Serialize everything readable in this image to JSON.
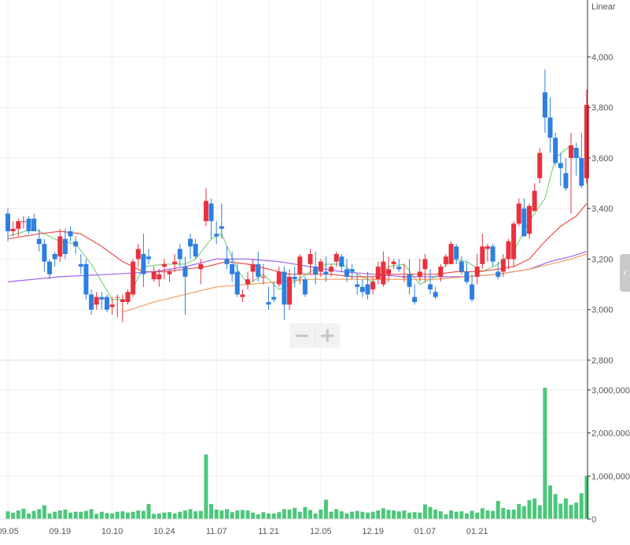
{
  "chart_data": {
    "type": "candlestick",
    "scale_label": "Linear",
    "price_axis": {
      "ticks": [
        "2,800",
        "3,000",
        "3,200",
        "3,400",
        "3,600",
        "3,800",
        "4,000"
      ],
      "ylim": [
        2800,
        4200
      ]
    },
    "volume_axis": {
      "ticks": [
        "0",
        "1,000,000",
        "2,000,000",
        "3,000,000"
      ],
      "ylim": [
        0,
        3600000
      ]
    },
    "x_tick_labels": [
      "09.05",
      "09.19",
      "10.10",
      "10.24",
      "11.07",
      "11.21",
      "12.05",
      "12.19",
      "01.07",
      "01.21"
    ],
    "x_tick_index": [
      0,
      10,
      20,
      30,
      40,
      50,
      60,
      70,
      80,
      90
    ],
    "grid": true,
    "colors": {
      "up": "#e8313e",
      "down": "#2d7fe0",
      "volume": "#4cc77b",
      "ma5": "#7fd47f",
      "ma20": "#e8504a",
      "ma60": "#a066e8",
      "ma120": "#f0a060"
    },
    "candles": [
      [
        3380,
        3400,
        3270,
        3310
      ],
      [
        3310,
        3350,
        3290,
        3320
      ],
      [
        3320,
        3360,
        3290,
        3350
      ],
      [
        3350,
        3370,
        3320,
        3350
      ],
      [
        3360,
        3370,
        3300,
        3310
      ],
      [
        3360,
        3380,
        3320,
        3310
      ],
      [
        3280,
        3320,
        3230,
        3260
      ],
      [
        3260,
        3280,
        3150,
        3190
      ],
      [
        3190,
        3200,
        3120,
        3140
      ],
      [
        3220,
        3230,
        3170,
        3200
      ],
      [
        3210,
        3320,
        3190,
        3290
      ],
      [
        3280,
        3320,
        3200,
        3220
      ],
      [
        3310,
        3330,
        3270,
        3290
      ],
      [
        3270,
        3290,
        3220,
        3250
      ],
      [
        3180,
        3220,
        3140,
        3170
      ],
      [
        3180,
        3200,
        3040,
        3060
      ],
      [
        3060,
        3080,
        2980,
        3000
      ],
      [
        3020,
        3070,
        3000,
        3050
      ],
      [
        3050,
        3070,
        3000,
        3040
      ],
      [
        3050,
        3060,
        2990,
        3000
      ],
      [
        3010,
        3050,
        2980,
        3020
      ],
      [
        3050,
        3060,
        2970,
        3050
      ],
      [
        3030,
        3060,
        2950,
        3040
      ],
      [
        3030,
        3080,
        3020,
        3070
      ],
      [
        3060,
        3200,
        3050,
        3190
      ],
      [
        3200,
        3260,
        3170,
        3240
      ],
      [
        3220,
        3300,
        3090,
        3140
      ],
      [
        3210,
        3240,
        3180,
        3200
      ],
      [
        3120,
        3170,
        3110,
        3150
      ],
      [
        3120,
        3160,
        3090,
        3140
      ],
      [
        3170,
        3200,
        3120,
        3180
      ],
      [
        3140,
        3160,
        3110,
        3150
      ],
      [
        3180,
        3220,
        3150,
        3190
      ],
      [
        3240,
        3260,
        3170,
        3200
      ],
      [
        3170,
        3210,
        2980,
        3130
      ],
      [
        3280,
        3300,
        3200,
        3250
      ],
      [
        3260,
        3280,
        3200,
        3210
      ],
      [
        3160,
        3200,
        3100,
        3180
      ],
      [
        3350,
        3480,
        3330,
        3430
      ],
      [
        3420,
        3440,
        3280,
        3350
      ],
      [
        3300,
        3350,
        3260,
        3290
      ],
      [
        3330,
        3420,
        3280,
        3320
      ],
      [
        3200,
        3250,
        3160,
        3180
      ],
      [
        3180,
        3230,
        3110,
        3140
      ],
      [
        3150,
        3180,
        3050,
        3060
      ],
      [
        3050,
        3080,
        3030,
        3060
      ],
      [
        3100,
        3150,
        3080,
        3120
      ],
      [
        3150,
        3200,
        3110,
        3180
      ],
      [
        3180,
        3230,
        3110,
        3130
      ],
      [
        3130,
        3180,
        3100,
        3130
      ],
      [
        3030,
        3090,
        3000,
        3020
      ],
      [
        3050,
        3110,
        3030,
        3040
      ],
      [
        3100,
        3170,
        3090,
        3150
      ],
      [
        3150,
        3170,
        2960,
        3020
      ],
      [
        3020,
        3160,
        3000,
        3130
      ],
      [
        3130,
        3170,
        3090,
        3120
      ],
      [
        3140,
        3220,
        3100,
        3210
      ],
      [
        3120,
        3130,
        3050,
        3060
      ],
      [
        3180,
        3240,
        3140,
        3220
      ],
      [
        3170,
        3230,
        3100,
        3140
      ],
      [
        3150,
        3200,
        3130,
        3190
      ],
      [
        3150,
        3210,
        3110,
        3140
      ],
      [
        3150,
        3180,
        3130,
        3170
      ],
      [
        3190,
        3230,
        3170,
        3220
      ],
      [
        3210,
        3220,
        3150,
        3170
      ],
      [
        3160,
        3200,
        3110,
        3130
      ],
      [
        3160,
        3180,
        3120,
        3150
      ],
      [
        3100,
        3140,
        3060,
        3090
      ],
      [
        3090,
        3120,
        3050,
        3070
      ],
      [
        3100,
        3150,
        3040,
        3060
      ],
      [
        3080,
        3130,
        3060,
        3110
      ],
      [
        3120,
        3190,
        3100,
        3170
      ],
      [
        3100,
        3230,
        3090,
        3190
      ],
      [
        3140,
        3210,
        3110,
        3160
      ],
      [
        3180,
        3200,
        3160,
        3190
      ],
      [
        3170,
        3200,
        3150,
        3160
      ],
      [
        3130,
        3180,
        3110,
        3130
      ],
      [
        3140,
        3200,
        3060,
        3090
      ],
      [
        3050,
        3100,
        3020,
        3030
      ],
      [
        3130,
        3200,
        3110,
        3150
      ],
      [
        3160,
        3220,
        3110,
        3200
      ],
      [
        3100,
        3160,
        3060,
        3080
      ],
      [
        3070,
        3090,
        3040,
        3050
      ],
      [
        3130,
        3180,
        3110,
        3170
      ],
      [
        3180,
        3220,
        3170,
        3210
      ],
      [
        3180,
        3270,
        3190,
        3260
      ],
      [
        3250,
        3260,
        3180,
        3200
      ],
      [
        3190,
        3210,
        3140,
        3150
      ],
      [
        3150,
        3190,
        3100,
        3110
      ],
      [
        3100,
        3140,
        3030,
        3040
      ],
      [
        3130,
        3220,
        3100,
        3170
      ],
      [
        3180,
        3300,
        3160,
        3250
      ],
      [
        3240,
        3260,
        3190,
        3250
      ],
      [
        3250,
        3260,
        3170,
        3190
      ],
      [
        3150,
        3190,
        3120,
        3130
      ],
      [
        3150,
        3220,
        3130,
        3200
      ],
      [
        3200,
        3280,
        3160,
        3270
      ],
      [
        3200,
        3350,
        3170,
        3340
      ],
      [
        3340,
        3440,
        3330,
        3420
      ],
      [
        3400,
        3440,
        3290,
        3290
      ],
      [
        3300,
        3420,
        3280,
        3410
      ],
      [
        3390,
        3500,
        3390,
        3470
      ],
      [
        3520,
        3640,
        3500,
        3620
      ],
      [
        3860,
        3950,
        3700,
        3760
      ],
      [
        3760,
        3840,
        3620,
        3680
      ],
      [
        3680,
        3700,
        3570,
        3580
      ],
      [
        3580,
        3620,
        3490,
        3560
      ],
      [
        3540,
        3600,
        3470,
        3480
      ],
      [
        3600,
        3700,
        3380,
        3650
      ],
      [
        3640,
        3660,
        3530,
        3600
      ],
      [
        3600,
        3700,
        3480,
        3490
      ],
      [
        3520,
        3870,
        3500,
        3810
      ]
    ],
    "volume": [
      180000,
      150000,
      200000,
      240000,
      130000,
      190000,
      230000,
      320000,
      130000,
      170000,
      200000,
      220000,
      150000,
      170000,
      170000,
      190000,
      230000,
      120000,
      170000,
      140000,
      130000,
      170000,
      180000,
      150000,
      170000,
      200000,
      190000,
      350000,
      120000,
      130000,
      150000,
      160000,
      130000,
      170000,
      200000,
      230000,
      180000,
      190000,
      1500000,
      350000,
      220000,
      200000,
      230000,
      160000,
      200000,
      210000,
      200000,
      150000,
      110000,
      160000,
      130000,
      130000,
      160000,
      230000,
      220000,
      260000,
      170000,
      280000,
      210000,
      130000,
      220000,
      450000,
      170000,
      230000,
      180000,
      130000,
      170000,
      190000,
      170000,
      150000,
      170000,
      200000,
      250000,
      210000,
      200000,
      180000,
      200000,
      150000,
      160000,
      150000,
      340000,
      280000,
      220000,
      180000,
      110000,
      200000,
      170000,
      180000,
      130000,
      190000,
      150000,
      250000,
      200000,
      190000,
      420000,
      260000,
      220000,
      220000,
      350000,
      300000,
      440000,
      480000,
      320000,
      3050000,
      780000,
      580000,
      360000,
      480000,
      330000,
      380000,
      600000,
      1000000
    ],
    "moving_averages": [
      {
        "key": "ma5",
        "color": "#7fd47f",
        "points": [
          [
            0,
            3290
          ],
          [
            5,
            3320
          ],
          [
            10,
            3270
          ],
          [
            13,
            3260
          ],
          [
            16,
            3180
          ],
          [
            20,
            3040
          ],
          [
            23,
            3040
          ],
          [
            26,
            3170
          ],
          [
            30,
            3180
          ],
          [
            34,
            3180
          ],
          [
            36,
            3200
          ],
          [
            39,
            3280
          ],
          [
            41,
            3300
          ],
          [
            44,
            3160
          ],
          [
            46,
            3100
          ],
          [
            49,
            3140
          ],
          [
            52,
            3080
          ],
          [
            55,
            3110
          ],
          [
            58,
            3150
          ],
          [
            61,
            3180
          ],
          [
            64,
            3180
          ],
          [
            67,
            3140
          ],
          [
            70,
            3110
          ],
          [
            73,
            3170
          ],
          [
            76,
            3180
          ],
          [
            79,
            3100
          ],
          [
            82,
            3130
          ],
          [
            85,
            3200
          ],
          [
            88,
            3190
          ],
          [
            91,
            3150
          ],
          [
            94,
            3180
          ],
          [
            97,
            3230
          ],
          [
            100,
            3350
          ],
          [
            103,
            3440
          ],
          [
            105,
            3600
          ],
          [
            108,
            3650
          ],
          [
            111,
            3560
          ]
        ]
      },
      {
        "key": "ma20",
        "color": "#e8504a",
        "points": [
          [
            0,
            3280
          ],
          [
            6,
            3300
          ],
          [
            10,
            3310
          ],
          [
            14,
            3300
          ],
          [
            18,
            3250
          ],
          [
            22,
            3190
          ],
          [
            26,
            3150
          ],
          [
            30,
            3150
          ],
          [
            34,
            3160
          ],
          [
            38,
            3170
          ],
          [
            42,
            3190
          ],
          [
            46,
            3180
          ],
          [
            50,
            3160
          ],
          [
            54,
            3140
          ],
          [
            58,
            3140
          ],
          [
            62,
            3140
          ],
          [
            66,
            3130
          ],
          [
            70,
            3130
          ],
          [
            74,
            3140
          ],
          [
            78,
            3140
          ],
          [
            82,
            3140
          ],
          [
            86,
            3150
          ],
          [
            90,
            3150
          ],
          [
            94,
            3160
          ],
          [
            97,
            3170
          ],
          [
            100,
            3200
          ],
          [
            103,
            3270
          ],
          [
            106,
            3330
          ],
          [
            109,
            3370
          ],
          [
            111,
            3420
          ]
        ]
      },
      {
        "key": "ma60",
        "color": "#a066e8",
        "points": [
          [
            0,
            3110
          ],
          [
            10,
            3130
          ],
          [
            20,
            3140
          ],
          [
            28,
            3150
          ],
          [
            34,
            3170
          ],
          [
            40,
            3200
          ],
          [
            46,
            3200
          ],
          [
            52,
            3190
          ],
          [
            58,
            3170
          ],
          [
            64,
            3150
          ],
          [
            70,
            3140
          ],
          [
            76,
            3130
          ],
          [
            82,
            3130
          ],
          [
            88,
            3130
          ],
          [
            94,
            3140
          ],
          [
            100,
            3160
          ],
          [
            104,
            3190
          ],
          [
            108,
            3210
          ],
          [
            111,
            3230
          ]
        ]
      },
      {
        "key": "ma120",
        "color": "#f0a060",
        "points": [
          [
            22,
            2990
          ],
          [
            28,
            3030
          ],
          [
            34,
            3060
          ],
          [
            40,
            3090
          ],
          [
            46,
            3100
          ],
          [
            52,
            3110
          ],
          [
            58,
            3120
          ],
          [
            64,
            3120
          ],
          [
            70,
            3120
          ],
          [
            76,
            3120
          ],
          [
            82,
            3120
          ],
          [
            88,
            3130
          ],
          [
            94,
            3140
          ],
          [
            100,
            3160
          ],
          [
            104,
            3180
          ],
          [
            108,
            3200
          ],
          [
            111,
            3220
          ]
        ]
      }
    ]
  },
  "controls": {
    "zoom_out_icon": "minus-icon",
    "zoom_in_icon": "plus-icon",
    "side_tab_icon": "chevron-left-icon"
  }
}
